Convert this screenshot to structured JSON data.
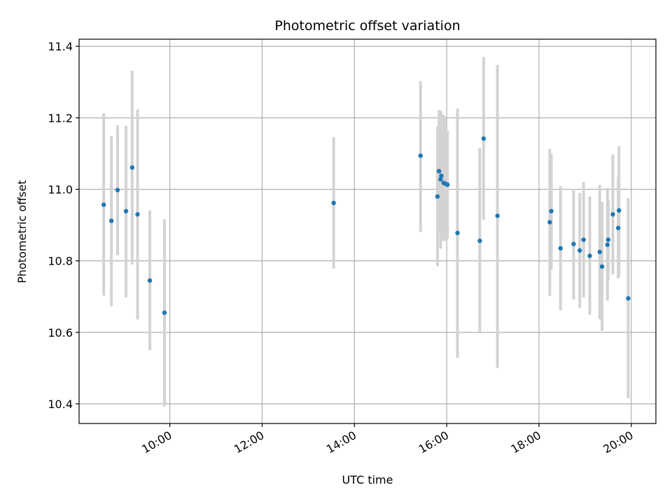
{
  "chart_data": {
    "type": "scatter",
    "title": "Photometric offset variation",
    "xlabel": "UTC time",
    "ylabel": "Photometric offset",
    "xlim": [
      "08:02",
      "20:32"
    ],
    "ylim": [
      10.345,
      11.42
    ],
    "xticks": [
      "10:00",
      "12:00",
      "14:00",
      "16:00",
      "18:00",
      "20:00"
    ],
    "yticks": [
      "10.4",
      "10.6",
      "10.8",
      "11.0",
      "11.2",
      "11.4"
    ],
    "grid": true,
    "colors": {
      "points": "#1f77b4",
      "errorbars": "#d3d3d3",
      "grid": "#b0b0b0"
    },
    "points": [
      {
        "t": "08:34",
        "y": 10.957,
        "lo": 10.703,
        "hi": 11.213
      },
      {
        "t": "08:44",
        "y": 10.912,
        "lo": 10.673,
        "hi": 11.149
      },
      {
        "t": "08:52",
        "y": 10.998,
        "lo": 10.816,
        "hi": 11.18
      },
      {
        "t": "09:03",
        "y": 10.939,
        "lo": 10.698,
        "hi": 11.178
      },
      {
        "t": "09:11",
        "y": 11.061,
        "lo": 10.79,
        "hi": 11.332
      },
      {
        "t": "09:18",
        "y": 10.93,
        "lo": 10.636,
        "hi": 11.223
      },
      {
        "t": "09:34",
        "y": 10.745,
        "lo": 10.55,
        "hi": 10.941
      },
      {
        "t": "09:53",
        "y": 10.655,
        "lo": 10.393,
        "hi": 10.917
      },
      {
        "t": "13:33",
        "y": 10.962,
        "lo": 10.778,
        "hi": 11.146
      },
      {
        "t": "15:26",
        "y": 11.094,
        "lo": 10.881,
        "hi": 11.303
      },
      {
        "t": "15:48",
        "y": 10.98,
        "lo": 10.785,
        "hi": 11.176
      },
      {
        "t": "15:50",
        "y": 11.051,
        "lo": 10.88,
        "hi": 11.222
      },
      {
        "t": "15:52",
        "y": 11.028,
        "lo": 10.834,
        "hi": 11.22
      },
      {
        "t": "15:53",
        "y": 11.038,
        "lo": 10.86,
        "hi": 11.215
      },
      {
        "t": "15:56",
        "y": 11.018,
        "lo": 10.855,
        "hi": 11.208
      },
      {
        "t": "15:58",
        "y": 11.016,
        "lo": 10.858,
        "hi": 11.198
      },
      {
        "t": "16:01",
        "y": 11.013,
        "lo": 10.862,
        "hi": 11.165
      },
      {
        "t": "16:14",
        "y": 10.878,
        "lo": 10.529,
        "hi": 11.226
      },
      {
        "t": "16:43",
        "y": 10.856,
        "lo": 10.597,
        "hi": 11.115
      },
      {
        "t": "16:48",
        "y": 11.142,
        "lo": 10.915,
        "hi": 11.37
      },
      {
        "t": "17:06",
        "y": 10.926,
        "lo": 10.501,
        "hi": 11.348
      },
      {
        "t": "18:14",
        "y": 10.908,
        "lo": 10.702,
        "hi": 11.113
      },
      {
        "t": "18:16",
        "y": 10.939,
        "lo": 10.776,
        "hi": 11.1
      },
      {
        "t": "18:28",
        "y": 10.835,
        "lo": 10.661,
        "hi": 11.009
      },
      {
        "t": "18:45",
        "y": 10.847,
        "lo": 10.692,
        "hi": 10.997
      },
      {
        "t": "18:53",
        "y": 10.829,
        "lo": 10.668,
        "hi": 10.99
      },
      {
        "t": "18:58",
        "y": 10.859,
        "lo": 10.697,
        "hi": 11.02
      },
      {
        "t": "19:06",
        "y": 10.814,
        "lo": 10.649,
        "hi": 10.98
      },
      {
        "t": "19:19",
        "y": 10.825,
        "lo": 10.637,
        "hi": 11.012
      },
      {
        "t": "19:22",
        "y": 10.784,
        "lo": 10.604,
        "hi": 10.965
      },
      {
        "t": "19:29",
        "y": 10.845,
        "lo": 10.689,
        "hi": 11.004
      },
      {
        "t": "19:30",
        "y": 10.859,
        "lo": 10.746,
        "hi": 10.97
      },
      {
        "t": "19:36",
        "y": 10.93,
        "lo": 10.762,
        "hi": 11.098
      },
      {
        "t": "19:43",
        "y": 10.892,
        "lo": 10.751,
        "hi": 11.035
      },
      {
        "t": "19:44",
        "y": 10.941,
        "lo": 10.757,
        "hi": 11.121
      },
      {
        "t": "19:56",
        "y": 10.695,
        "lo": 10.416,
        "hi": 10.975
      }
    ]
  }
}
